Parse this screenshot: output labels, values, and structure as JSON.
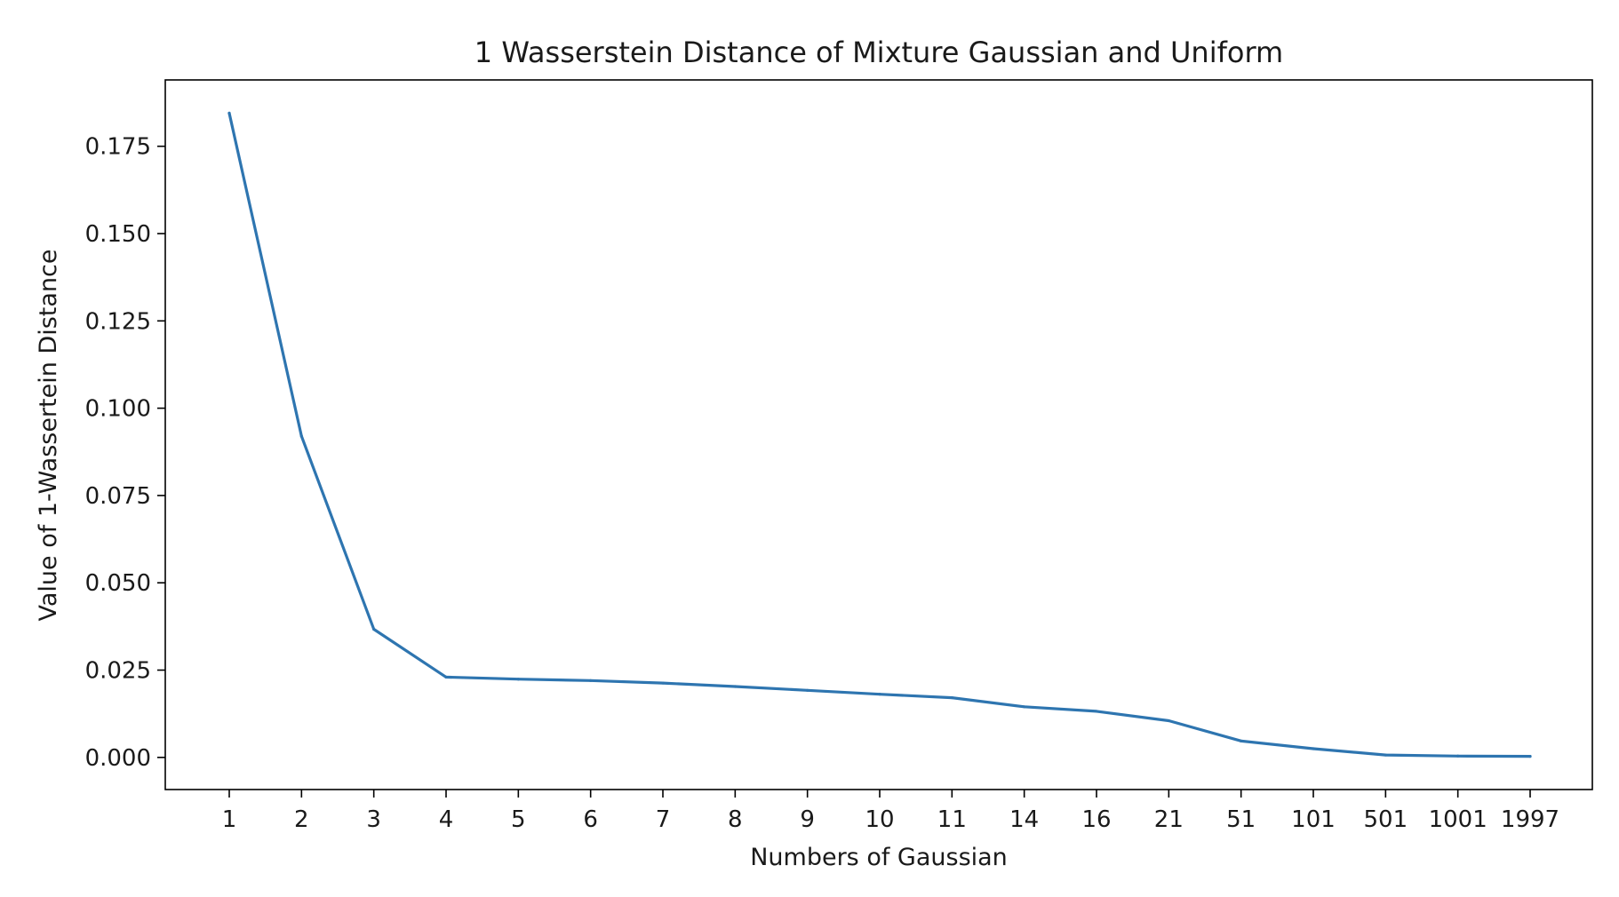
{
  "chart_data": {
    "type": "line",
    "title": "1 Wasserstein Distance of Mixture Gaussian and Uniform",
    "xlabel": "Numbers of Gaussian",
    "ylabel": "Value of 1-Wassertein Distance",
    "categories": [
      "1",
      "2",
      "3",
      "4",
      "5",
      "6",
      "7",
      "8",
      "9",
      "10",
      "11",
      "14",
      "16",
      "21",
      "51",
      "101",
      "501",
      "1001",
      "1997"
    ],
    "series": [
      {
        "values": [
          0.1845,
          0.092,
          0.0367,
          0.023,
          0.0224,
          0.022,
          0.0213,
          0.0203,
          0.0192,
          0.0181,
          0.0171,
          0.0145,
          0.0132,
          0.0105,
          0.0047,
          0.0025,
          0.0007,
          0.0004,
          0.0003
        ],
        "color": "#2e75b0"
      }
    ],
    "ylim": [
      -0.0092,
      0.194
    ],
    "yticks": [
      "0.000",
      "0.025",
      "0.050",
      "0.075",
      "0.100",
      "0.125",
      "0.150",
      "0.175"
    ],
    "grid": false,
    "legend": false
  }
}
